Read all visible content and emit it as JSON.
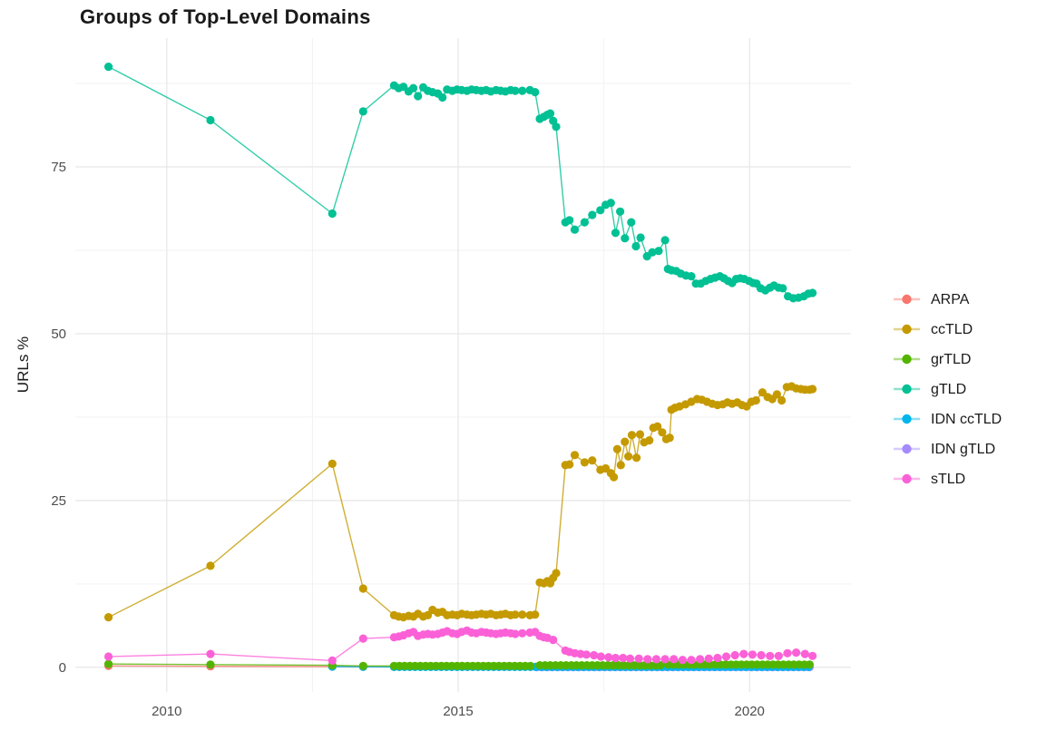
{
  "title": "Groups of Top-Level Domains",
  "y_axis_title": "URLs %",
  "colors": {
    "grid_major": "#e6e6e6",
    "grid_minor": "#f2f2f2",
    "tick_text": "#4d4d4d",
    "title_text": "#1a1a1a",
    "background": "#ffffff"
  },
  "chart_data": {
    "type": "line",
    "title": "Groups of Top-Level Domains",
    "xlabel": "",
    "ylabel": "URLs %",
    "xlim": [
      2008.43,
      2021.74
    ],
    "ylim": [
      -3.7,
      94.3
    ],
    "grid": "on",
    "legend_position": "right",
    "x_ticks": [
      {
        "value": 2010,
        "label": "2010"
      },
      {
        "value": 2015,
        "label": "2015"
      },
      {
        "value": 2020,
        "label": "2020"
      }
    ],
    "x_minor_ticks": [
      2012.5,
      2017.5
    ],
    "y_ticks": [
      {
        "value": 0,
        "label": "0"
      },
      {
        "value": 25,
        "label": "25"
      },
      {
        "value": 50,
        "label": "50"
      },
      {
        "value": 75,
        "label": "75"
      }
    ],
    "y_minor_ticks": [
      12.5,
      37.5,
      62.5,
      87.5
    ],
    "legend": [
      {
        "label": "ARPA",
        "color": "#F8766D"
      },
      {
        "label": "ccTLD",
        "color": "#C49A00"
      },
      {
        "label": "grTLD",
        "color": "#53B400"
      },
      {
        "label": "gTLD",
        "color": "#00C094"
      },
      {
        "label": "IDN ccTLD",
        "color": "#00B6EB"
      },
      {
        "label": "IDN gTLD",
        "color": "#A58AFF"
      },
      {
        "label": "sTLD",
        "color": "#FB61D7"
      }
    ],
    "series": {
      "ARPA": [
        [
          2009,
          0.2
        ],
        [
          2010.75,
          0.15
        ],
        [
          2012.84,
          0.1
        ],
        [
          2013.37,
          0.08
        ],
        {
          "from": 2013.9,
          "to": 2021.08,
          "step": 0.09,
          "value": 0.06
        }
      ],
      "ccTLD": [
        [
          2009,
          7.5
        ],
        [
          2010.75,
          15.2
        ],
        [
          2012.84,
          30.5
        ],
        [
          2013.37,
          11.8
        ],
        [
          2013.9,
          7.8
        ],
        [
          2013.98,
          7.6
        ],
        [
          2014.06,
          7.5
        ],
        [
          2014.15,
          7.7
        ],
        [
          2014.23,
          7.6
        ],
        [
          2014.31,
          8.0
        ],
        [
          2014.4,
          7.6
        ],
        [
          2014.48,
          7.8
        ],
        [
          2014.56,
          8.6
        ],
        [
          2014.65,
          8.2
        ],
        [
          2014.73,
          8.3
        ],
        [
          2014.81,
          7.8
        ],
        [
          2014.9,
          7.9
        ],
        [
          2014.98,
          7.8
        ],
        [
          2015.06,
          8.0
        ],
        [
          2015.15,
          7.9
        ],
        [
          2015.23,
          7.8
        ],
        [
          2015.31,
          7.9
        ],
        [
          2015.4,
          8.0
        ],
        [
          2015.48,
          7.9
        ],
        [
          2015.56,
          8.0
        ],
        [
          2015.65,
          7.8
        ],
        [
          2015.73,
          7.9
        ],
        [
          2015.81,
          8.0
        ],
        [
          2015.9,
          7.8
        ],
        [
          2015.98,
          7.9
        ],
        [
          2016.1,
          7.9
        ],
        [
          2016.23,
          7.8
        ],
        [
          2016.32,
          7.9
        ],
        [
          2016.4,
          12.7
        ],
        [
          2016.47,
          12.6
        ],
        [
          2016.53,
          12.9
        ],
        [
          2016.58,
          12.6
        ],
        [
          2016.63,
          13.4
        ],
        [
          2016.68,
          14.1
        ],
        [
          2016.84,
          30.3
        ],
        [
          2016.91,
          30.4
        ],
        [
          2017.0,
          31.8
        ],
        [
          2017.17,
          30.7
        ],
        [
          2017.3,
          31.0
        ],
        [
          2017.44,
          29.6
        ],
        [
          2017.53,
          29.8
        ],
        [
          2017.62,
          29.1
        ],
        [
          2017.67,
          28.5
        ],
        [
          2017.73,
          32.7
        ],
        [
          2017.79,
          30.3
        ],
        [
          2017.86,
          33.8
        ],
        [
          2017.92,
          31.6
        ],
        [
          2017.98,
          34.8
        ],
        [
          2018.06,
          31.4
        ],
        [
          2018.12,
          34.9
        ],
        [
          2018.19,
          33.7
        ],
        [
          2018.28,
          34.0
        ],
        [
          2018.35,
          35.9
        ],
        [
          2018.42,
          36.1
        ],
        [
          2018.5,
          35.2
        ],
        [
          2018.57,
          34.2
        ],
        [
          2018.63,
          34.4
        ],
        [
          2018.66,
          38.6
        ],
        [
          2018.72,
          38.9
        ],
        [
          2018.8,
          39.1
        ],
        [
          2018.9,
          39.4
        ],
        [
          2019.0,
          39.8
        ],
        [
          2019.1,
          40.2
        ],
        [
          2019.18,
          40.1
        ],
        [
          2019.27,
          39.8
        ],
        [
          2019.36,
          39.5
        ],
        [
          2019.45,
          39.3
        ],
        [
          2019.54,
          39.4
        ],
        [
          2019.62,
          39.7
        ],
        [
          2019.7,
          39.5
        ],
        [
          2019.79,
          39.7
        ],
        [
          2019.87,
          39.3
        ],
        [
          2019.95,
          39.1
        ],
        [
          2020.03,
          39.8
        ],
        [
          2020.11,
          40.0
        ],
        [
          2020.22,
          41.2
        ],
        [
          2020.31,
          40.5
        ],
        [
          2020.39,
          40.2
        ],
        [
          2020.47,
          40.9
        ],
        [
          2020.55,
          40.0
        ],
        [
          2020.64,
          42.0
        ],
        [
          2020.72,
          42.1
        ],
        [
          2020.8,
          41.8
        ],
        [
          2020.88,
          41.7
        ],
        [
          2020.95,
          41.6
        ],
        [
          2021.03,
          41.6
        ],
        [
          2021.08,
          41.7
        ]
      ],
      "grTLD": [
        [
          2009,
          0.5
        ],
        [
          2010.75,
          0.4
        ],
        [
          2012.84,
          0.3
        ],
        [
          2013.37,
          0.2
        ],
        {
          "from": 2013.9,
          "to": 2016.32,
          "step": 0.09,
          "value": 0.2
        },
        {
          "from": 2016.4,
          "to": 2018.5,
          "step": 0.09,
          "value": 0.3
        },
        {
          "from": 2018.6,
          "to": 2021.08,
          "step": 0.09,
          "value": 0.4
        }
      ],
      "gTLD": [
        [
          2009,
          90.0
        ],
        [
          2010.75,
          82.0
        ],
        [
          2012.84,
          68.0
        ],
        [
          2013.37,
          83.3
        ],
        [
          2013.9,
          87.2
        ],
        [
          2013.98,
          86.8
        ],
        [
          2014.06,
          87.0
        ],
        [
          2014.15,
          86.3
        ],
        [
          2014.23,
          86.8
        ],
        [
          2014.31,
          85.6
        ],
        [
          2014.4,
          86.9
        ],
        [
          2014.48,
          86.4
        ],
        [
          2014.56,
          86.2
        ],
        [
          2014.65,
          86.0
        ],
        [
          2014.73,
          85.4
        ],
        [
          2014.81,
          86.6
        ],
        [
          2014.9,
          86.4
        ],
        [
          2014.98,
          86.6
        ],
        [
          2015.06,
          86.5
        ],
        [
          2015.15,
          86.4
        ],
        [
          2015.23,
          86.6
        ],
        [
          2015.31,
          86.5
        ],
        [
          2015.4,
          86.4
        ],
        [
          2015.48,
          86.5
        ],
        [
          2015.56,
          86.3
        ],
        [
          2015.65,
          86.5
        ],
        [
          2015.73,
          86.4
        ],
        [
          2015.81,
          86.3
        ],
        [
          2015.9,
          86.5
        ],
        [
          2015.98,
          86.4
        ],
        [
          2016.1,
          86.4
        ],
        [
          2016.23,
          86.5
        ],
        [
          2016.32,
          86.2
        ],
        [
          2016.4,
          82.2
        ],
        [
          2016.47,
          82.5
        ],
        [
          2016.53,
          82.8
        ],
        [
          2016.58,
          83.0
        ],
        [
          2016.63,
          81.9
        ],
        [
          2016.68,
          81.0
        ],
        [
          2016.84,
          66.7
        ],
        [
          2016.91,
          67.0
        ],
        [
          2017.0,
          65.6
        ],
        [
          2017.17,
          66.7
        ],
        [
          2017.3,
          67.8
        ],
        [
          2017.44,
          68.5
        ],
        [
          2017.53,
          69.3
        ],
        [
          2017.62,
          69.6
        ],
        [
          2017.7,
          65.1
        ],
        [
          2017.78,
          68.3
        ],
        [
          2017.86,
          64.3
        ],
        [
          2017.97,
          66.7
        ],
        [
          2018.05,
          63.1
        ],
        [
          2018.13,
          64.4
        ],
        [
          2018.24,
          61.6
        ],
        [
          2018.33,
          62.2
        ],
        [
          2018.44,
          62.4
        ],
        [
          2018.55,
          64.0
        ],
        [
          2018.6,
          59.7
        ],
        [
          2018.66,
          59.5
        ],
        [
          2018.74,
          59.4
        ],
        [
          2018.82,
          59.0
        ],
        [
          2018.91,
          58.7
        ],
        [
          2019.0,
          58.6
        ],
        [
          2019.08,
          57.5
        ],
        [
          2019.16,
          57.5
        ],
        [
          2019.25,
          57.9
        ],
        [
          2019.33,
          58.2
        ],
        [
          2019.41,
          58.4
        ],
        [
          2019.49,
          58.6
        ],
        [
          2019.56,
          58.3
        ],
        [
          2019.63,
          57.9
        ],
        [
          2019.7,
          57.6
        ],
        [
          2019.77,
          58.2
        ],
        [
          2019.84,
          58.3
        ],
        [
          2019.91,
          58.2
        ],
        [
          2019.99,
          57.9
        ],
        [
          2020.06,
          57.6
        ],
        [
          2020.12,
          57.5
        ],
        [
          2020.19,
          56.8
        ],
        [
          2020.27,
          56.5
        ],
        [
          2020.35,
          56.9
        ],
        [
          2020.42,
          57.2
        ],
        [
          2020.5,
          56.9
        ],
        [
          2020.57,
          56.8
        ],
        [
          2020.66,
          55.6
        ],
        [
          2020.75,
          55.3
        ],
        [
          2020.84,
          55.4
        ],
        [
          2020.93,
          55.6
        ],
        [
          2021.01,
          56.0
        ],
        [
          2021.08,
          56.1
        ]
      ],
      "IDN ccTLD": [
        [
          2012.84,
          0.1
        ],
        [
          2013.37,
          0.07
        ],
        {
          "from": 2013.9,
          "to": 2021.08,
          "step": 0.09,
          "value": 0.05
        }
      ],
      "IDN gTLD": [
        {
          "from": 2016.35,
          "to": 2021.08,
          "step": 0.09,
          "value": 0.03
        }
      ],
      "sTLD": [
        [
          2009,
          1.6
        ],
        [
          2010.75,
          2.0
        ],
        [
          2012.84,
          1.0
        ],
        [
          2013.37,
          4.3
        ],
        [
          2013.9,
          4.5
        ],
        [
          2013.98,
          4.6
        ],
        [
          2014.06,
          4.8
        ],
        [
          2014.15,
          5.1
        ],
        [
          2014.23,
          5.3
        ],
        [
          2014.31,
          4.7
        ],
        [
          2014.4,
          4.9
        ],
        [
          2014.48,
          5.0
        ],
        [
          2014.56,
          4.9
        ],
        [
          2014.65,
          5.0
        ],
        [
          2014.73,
          5.2
        ],
        [
          2014.81,
          5.4
        ],
        [
          2014.9,
          5.1
        ],
        [
          2014.98,
          5.0
        ],
        [
          2015.06,
          5.3
        ],
        [
          2015.15,
          5.5
        ],
        [
          2015.23,
          5.2
        ],
        [
          2015.31,
          5.1
        ],
        [
          2015.4,
          5.3
        ],
        [
          2015.48,
          5.2
        ],
        [
          2015.56,
          5.1
        ],
        [
          2015.65,
          5.0
        ],
        [
          2015.73,
          5.1
        ],
        [
          2015.81,
          5.2
        ],
        [
          2015.9,
          5.1
        ],
        [
          2015.98,
          5.0
        ],
        [
          2016.1,
          5.1
        ],
        [
          2016.23,
          5.2
        ],
        [
          2016.32,
          5.3
        ],
        [
          2016.4,
          4.7
        ],
        [
          2016.47,
          4.5
        ],
        [
          2016.53,
          4.4
        ],
        [
          2016.63,
          4.1
        ],
        [
          2016.84,
          2.5
        ],
        [
          2016.91,
          2.3
        ],
        [
          2017.0,
          2.1
        ],
        [
          2017.1,
          2.0
        ],
        [
          2017.2,
          1.9
        ],
        [
          2017.33,
          1.8
        ],
        [
          2017.45,
          1.6
        ],
        [
          2017.58,
          1.5
        ],
        [
          2017.7,
          1.4
        ],
        [
          2017.83,
          1.4
        ],
        [
          2017.95,
          1.3
        ],
        [
          2018.1,
          1.3
        ],
        [
          2018.25,
          1.2
        ],
        [
          2018.4,
          1.2
        ],
        [
          2018.55,
          1.2
        ],
        [
          2018.7,
          1.2
        ],
        [
          2018.85,
          1.1
        ],
        [
          2019.0,
          1.1
        ],
        [
          2019.15,
          1.2
        ],
        [
          2019.3,
          1.3
        ],
        [
          2019.45,
          1.4
        ],
        [
          2019.6,
          1.6
        ],
        [
          2019.75,
          1.8
        ],
        [
          2019.9,
          2.0
        ],
        [
          2020.05,
          1.9
        ],
        [
          2020.2,
          1.8
        ],
        [
          2020.35,
          1.7
        ],
        [
          2020.5,
          1.7
        ],
        [
          2020.65,
          2.1
        ],
        [
          2020.8,
          2.2
        ],
        [
          2020.95,
          2.0
        ],
        [
          2021.08,
          1.7
        ]
      ]
    }
  }
}
